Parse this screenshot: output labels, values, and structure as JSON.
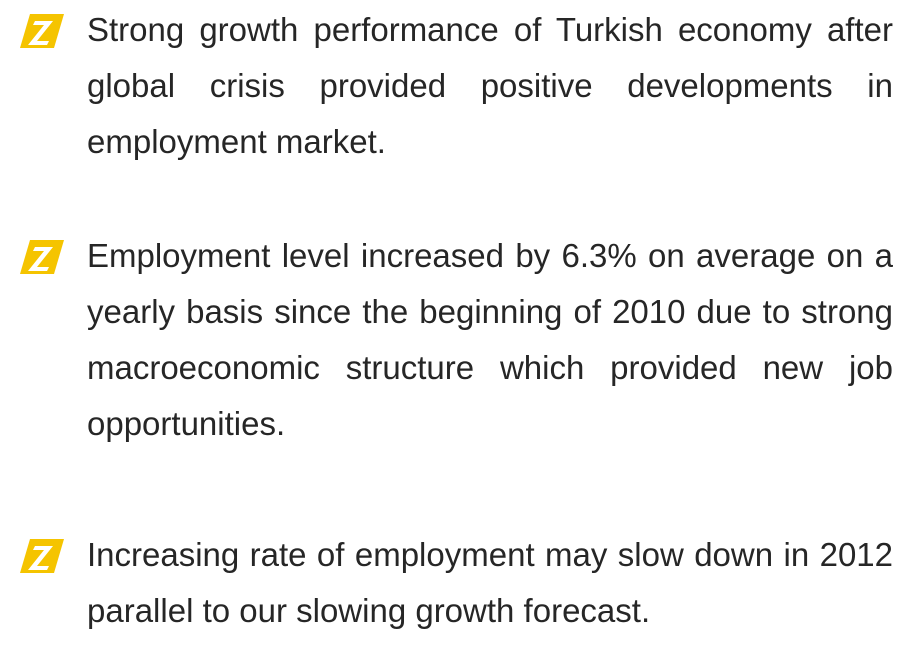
{
  "bullets": [
    "Strong growth performance of Turkish economy after global crisis provided positive developments in employment market.",
    "Employment level increased by 6.3% on average on a yearly basis since the beginning of 2010 due to strong macroeconomic structure which provided new job opportunities.",
    "Increasing rate of employment may slow down in 2012 parallel to our slowing growth forecast."
  ]
}
